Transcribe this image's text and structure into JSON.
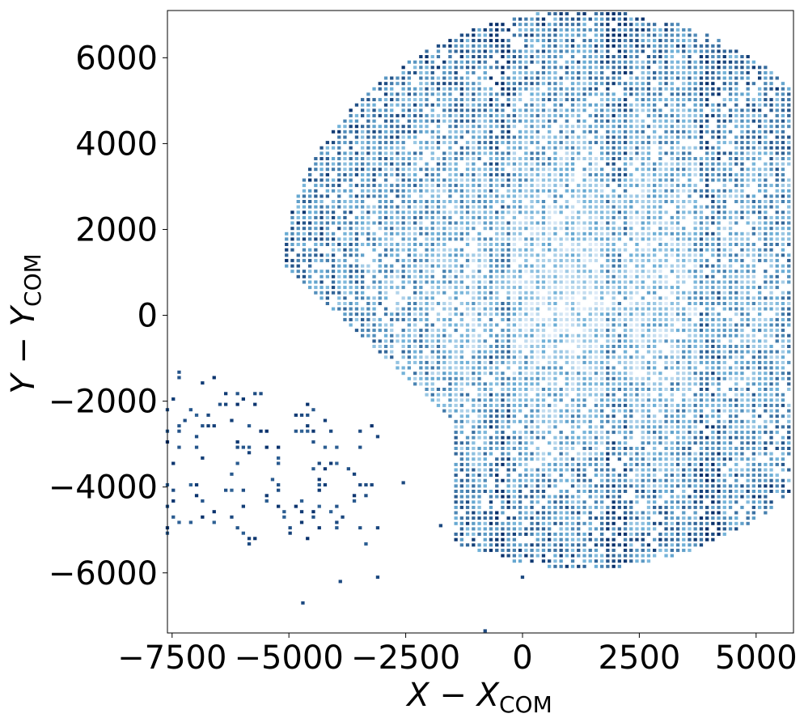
{
  "chart_data": {
    "type": "heatmap",
    "title": "",
    "xlabel": {
      "main": "X − X",
      "sub": "COM"
    },
    "ylabel": {
      "main": "Y − Y",
      "sub": "COM"
    },
    "xlim": [
      -7600,
      5800
    ],
    "ylim": [
      -7400,
      7100
    ],
    "xticks": [
      -7500,
      -5000,
      -2500,
      0,
      2500,
      5000
    ],
    "xtick_labels": [
      "−7500",
      "−5000",
      "−2500",
      "0",
      "2500",
      "5000"
    ],
    "yticks": [
      -6000,
      -4000,
      -2000,
      0,
      2000,
      4000,
      6000
    ],
    "ytick_labels": [
      "−6000",
      "−4000",
      "−2000",
      "0",
      "2000",
      "4000",
      "6000"
    ],
    "grid": false,
    "colormap": "Blues",
    "colors": {
      "light": "#deebf7",
      "mid": "#6baed6",
      "dark": "#08306b"
    },
    "bin_size": [
      125,
      125
    ],
    "region": {
      "main_body": {
        "x_range": [
          -5300,
          5800
        ],
        "y_range": [
          -6100,
          7100
        ],
        "center": [
          1300,
          600
        ],
        "radius": 6500,
        "cut_line_note": "lower-left boundary"
      },
      "sparse_tail": {
        "x_range": [
          -7600,
          -3000
        ],
        "y_range": [
          -6700,
          -1000
        ],
        "density": "sparse, dark bins"
      }
    },
    "isolated_points": [
      [
        -800,
        -7350
      ],
      [
        -4700,
        -6700
      ],
      [
        -3900,
        -6200
      ],
      [
        -3100,
        -6100
      ],
      [
        0,
        -6100
      ],
      [
        -1750,
        -4900
      ],
      [
        -2550,
        -3900
      ]
    ]
  }
}
